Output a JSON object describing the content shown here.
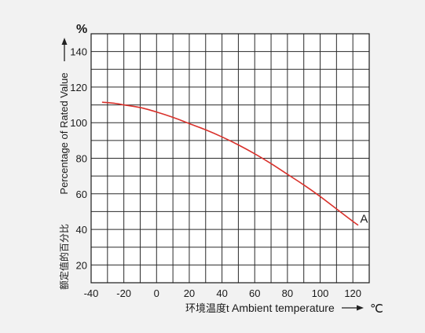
{
  "chart_data": {
    "type": "line",
    "ylabel_cn": "额定值的百分比",
    "ylabel_en": "Percentage of Rated Value",
    "y_unit": "%",
    "xlabel_cn": "环境温度t",
    "xlabel_en": "Ambient temperature",
    "x_unit": "℃",
    "xlim": [
      -40,
      130
    ],
    "ylim": [
      10,
      150
    ],
    "x_ticks": [
      -40,
      -20,
      0,
      20,
      40,
      60,
      80,
      100,
      120
    ],
    "y_ticks": [
      20,
      40,
      60,
      80,
      100,
      120,
      140
    ],
    "grid": true,
    "annotation": "A",
    "series": [
      {
        "color": "#d9312b",
        "x": [
          -33,
          -25,
          -20,
          -10,
          0,
          10,
          20,
          30,
          40,
          50,
          60,
          70,
          80,
          90,
          100,
          110,
          115,
          120,
          123
        ],
        "y": [
          111.5,
          110.8,
          110,
          108.5,
          106,
          103,
          99.5,
          96,
          92,
          87.5,
          82.5,
          77,
          71,
          65,
          58.5,
          51.5,
          48,
          44.5,
          42.5
        ]
      }
    ]
  }
}
